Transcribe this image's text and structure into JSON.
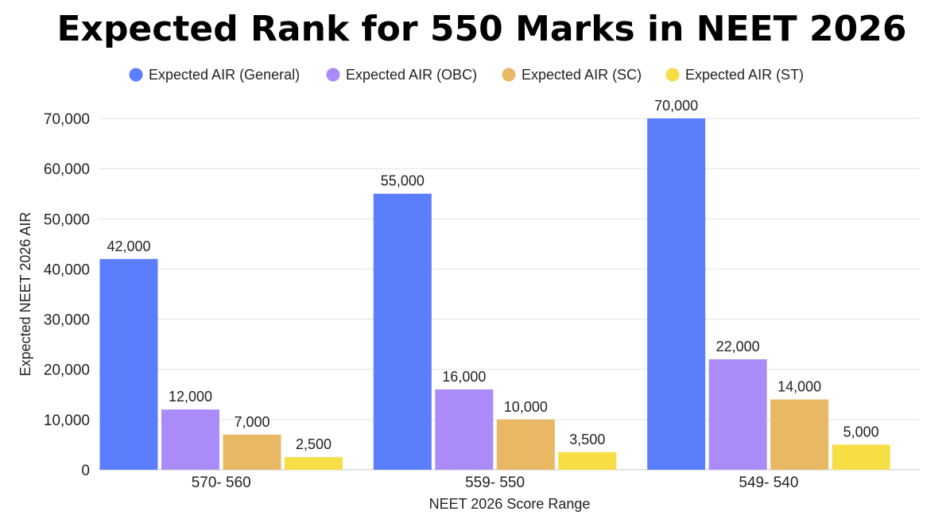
{
  "chart_data": {
    "type": "bar",
    "title": "Expected Rank for 550 Marks in NEET 2026",
    "xlabel": "NEET 2026 Score Range",
    "ylabel": "Expected NEET 2026 AIR",
    "categories": [
      "570- 560",
      "559- 550",
      "549- 540"
    ],
    "series": [
      {
        "name": "Expected AIR (General)",
        "color": "#5b7ffc",
        "values": [
          42000,
          55000,
          70000
        ],
        "labels": [
          "42,000",
          "55,000",
          "70,000"
        ]
      },
      {
        "name": "Expected AIR (OBC)",
        "color": "#ab8bf7",
        "values": [
          12000,
          16000,
          22000
        ],
        "labels": [
          "12,000",
          "16,000",
          "22,000"
        ]
      },
      {
        "name": "Expected AIR (SC)",
        "color": "#e9b865",
        "values": [
          7000,
          10000,
          14000
        ],
        "labels": [
          "7,000",
          "10,000",
          "14,000"
        ]
      },
      {
        "name": "Expected AIR (ST)",
        "color": "#f7de47",
        "values": [
          2500,
          3500,
          5000
        ],
        "labels": [
          "2,500",
          "3,500",
          "5,000"
        ]
      }
    ],
    "ylim": [
      0,
      70000
    ],
    "yticks": [
      0,
      10000,
      20000,
      30000,
      40000,
      50000,
      60000,
      70000
    ],
    "ytick_labels": [
      "0",
      "10,000",
      "20,000",
      "30,000",
      "40,000",
      "50,000",
      "60,000",
      "70,000"
    ],
    "grid": true,
    "legend_position": "top"
  }
}
